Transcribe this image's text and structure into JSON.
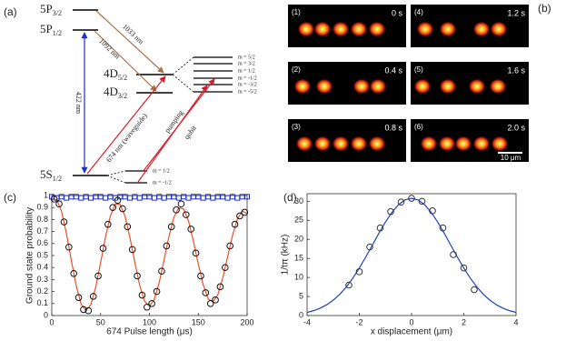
{
  "panel_labels": [
    "(a)",
    "(b)",
    "(c)",
    "(d)"
  ],
  "energy_diagram": {
    "levels": [
      {
        "main": "5P",
        "sub": "3/2"
      },
      {
        "main": "5P",
        "sub": "1/2"
      },
      {
        "main": "4D",
        "sub": "5/2"
      },
      {
        "main": "4D",
        "sub": "3/2"
      },
      {
        "main": "5S",
        "sub": "1/2"
      }
    ],
    "d_sublevels": [
      "m = 5/2",
      "m = 3/2",
      "m = 1/2",
      "m = -1/2",
      "m = -3/2",
      "m = -5/2"
    ],
    "s_sublevels": [
      "m = 1/2",
      "m = -1/2"
    ],
    "transitions": [
      {
        "label": "1033 nm",
        "color": "#a8744a"
      },
      {
        "label": "1092 nm",
        "color": "#a8744a"
      },
      {
        "label": "422 nm",
        "color": "#1f2fc8"
      },
      {
        "label": "674 nm (waveguide)",
        "color": "#d81e2a"
      },
      {
        "label": "pumping",
        "color": "#d81e2a"
      },
      {
        "label": "qubit",
        "color": "#d81e2a"
      }
    ]
  },
  "images": {
    "tiles": [
      {
        "label": "(1)",
        "time": "0 s"
      },
      {
        "label": "(2)",
        "time": "0.4 s"
      },
      {
        "label": "(3)",
        "time": "0.8 s"
      },
      {
        "label": "(4)",
        "time": "1.2 s"
      },
      {
        "label": "(5)",
        "time": "1.6 s"
      },
      {
        "label": "(6)",
        "time": "2.0 s"
      }
    ],
    "scale_bar": "10 μm"
  },
  "chart_data": [
    {
      "type": "scatter",
      "xlabel": "674 Pulse length (μs)",
      "ylabel": "Ground state probability",
      "xlim": [
        0,
        200
      ],
      "ylim": [
        0,
        1
      ],
      "xticks": [
        0,
        50,
        100,
        150,
        200
      ],
      "yticks": [
        0,
        0.1,
        0.2,
        0.3,
        0.4,
        0.5,
        0.6,
        0.7,
        0.8,
        0.9,
        1
      ],
      "series": [
        {
          "marker": "square",
          "color": "#1f2fc8",
          "x": [
            0,
            5,
            10,
            15,
            20,
            25,
            30,
            35,
            40,
            45,
            50,
            55,
            60,
            65,
            70,
            75,
            80,
            85,
            90,
            95,
            100,
            105,
            110,
            115,
            120,
            125,
            130,
            135,
            140,
            145,
            150,
            155,
            160,
            165,
            170,
            175,
            180,
            185,
            190,
            195,
            200
          ],
          "values": [
            0.99,
            0.98,
            0.99,
            0.98,
            0.99,
            0.99,
            0.98,
            0.99,
            0.98,
            0.99,
            0.99,
            0.98,
            0.99,
            0.98,
            0.99,
            0.99,
            0.98,
            0.99,
            0.98,
            0.99,
            0.99,
            0.98,
            0.99,
            0.98,
            0.99,
            0.99,
            0.98,
            0.99,
            0.98,
            0.99,
            0.99,
            0.98,
            0.99,
            0.98,
            0.99,
            0.99,
            0.98,
            0.99,
            0.98,
            0.99,
            0.99
          ]
        },
        {
          "marker": "line",
          "color": "#e8502a",
          "x": [
            0,
            5,
            10,
            15,
            20,
            25,
            30,
            35,
            40,
            45,
            50,
            55,
            60,
            65,
            70,
            75,
            80,
            85,
            90,
            95,
            100,
            105,
            110,
            115,
            120,
            125,
            130,
            135,
            140,
            145,
            150,
            155,
            160,
            165,
            170,
            175,
            180,
            185,
            190,
            195,
            200
          ],
          "values": [
            0.96,
            0.968,
            0.868,
            0.684,
            0.46,
            0.248,
            0.097,
            0.041,
            0.091,
            0.237,
            0.44,
            0.655,
            0.83,
            0.928,
            0.926,
            0.827,
            0.65,
            0.444,
            0.252,
            0.119,
            0.078,
            0.135,
            0.276,
            0.466,
            0.66,
            0.817,
            0.898,
            0.887,
            0.788,
            0.62,
            0.431,
            0.258,
            0.141,
            0.112,
            0.173,
            0.311,
            0.489,
            0.665,
            0.804,
            0.871,
            0.849
          ]
        },
        {
          "marker": "circle",
          "color": "#111111",
          "x": [
            2.5,
            7.5,
            12.5,
            17.5,
            22.5,
            27.5,
            32.5,
            37.5,
            42.5,
            47.5,
            52.5,
            57.5,
            62.5,
            67.5,
            72.5,
            77.5,
            82.5,
            87.5,
            92.5,
            97.5,
            102.5,
            107.5,
            112.5,
            117.5,
            122.5,
            127.5,
            132.5,
            137.5,
            142.5,
            147.5,
            152.5,
            157.5,
            162.5,
            167.5,
            172.5,
            177.5,
            182.5,
            187.5,
            192.5,
            197.5
          ],
          "values": [
            0.97,
            0.93,
            0.78,
            0.57,
            0.35,
            0.15,
            0.05,
            0.04,
            0.16,
            0.33,
            0.56,
            0.76,
            0.9,
            0.96,
            0.89,
            0.74,
            0.55,
            0.33,
            0.17,
            0.07,
            0.1,
            0.2,
            0.37,
            0.58,
            0.74,
            0.88,
            0.93,
            0.84,
            0.72,
            0.52,
            0.33,
            0.19,
            0.1,
            0.13,
            0.24,
            0.4,
            0.58,
            0.76,
            0.83,
            0.86
          ]
        }
      ]
    },
    {
      "type": "scatter",
      "xlabel": "x displacement (μm)",
      "ylabel": "1/tπ (kHz)",
      "xlim": [
        -4,
        4
      ],
      "ylim": [
        0,
        32
      ],
      "xticks": [
        -4,
        -2,
        0,
        2,
        4
      ],
      "yticks": [
        0,
        5,
        10,
        15,
        20,
        25,
        30
      ],
      "series": [
        {
          "marker": "line",
          "color": "#1f3fc0",
          "x": [
            -4,
            -3.75,
            -3.5,
            -3.25,
            -3,
            -2.75,
            -2.5,
            -2.25,
            -2,
            -1.75,
            -1.5,
            -1.25,
            -1,
            -0.75,
            -0.5,
            -0.25,
            0,
            0.25,
            0.5,
            0.75,
            1,
            1.25,
            1.5,
            1.75,
            2,
            2.25,
            2.5,
            2.75,
            3,
            3.25,
            3.5,
            3.75,
            4
          ],
          "values": [
            0.82,
            1.28,
            1.93,
            2.82,
            4.02,
            5.57,
            7.49,
            9.8,
            12.46,
            15.4,
            18.51,
            21.63,
            24.56,
            27.12,
            29.11,
            30.37,
            30.8,
            30.37,
            29.11,
            27.12,
            24.56,
            21.63,
            18.51,
            15.4,
            12.46,
            9.8,
            7.49,
            5.57,
            4.02,
            2.82,
            1.93,
            1.28,
            0.82
          ]
        },
        {
          "marker": "circle",
          "color": "#333333",
          "x": [
            -2.4,
            -2,
            -1.6,
            -1.2,
            -0.8,
            -0.4,
            0,
            0.4,
            0.8,
            1.2,
            1.6,
            2,
            2.4
          ],
          "values": [
            8,
            11.5,
            18,
            23,
            27.3,
            29.8,
            30.8,
            30,
            27.5,
            23,
            16,
            12.5,
            6.8
          ]
        }
      ]
    }
  ]
}
